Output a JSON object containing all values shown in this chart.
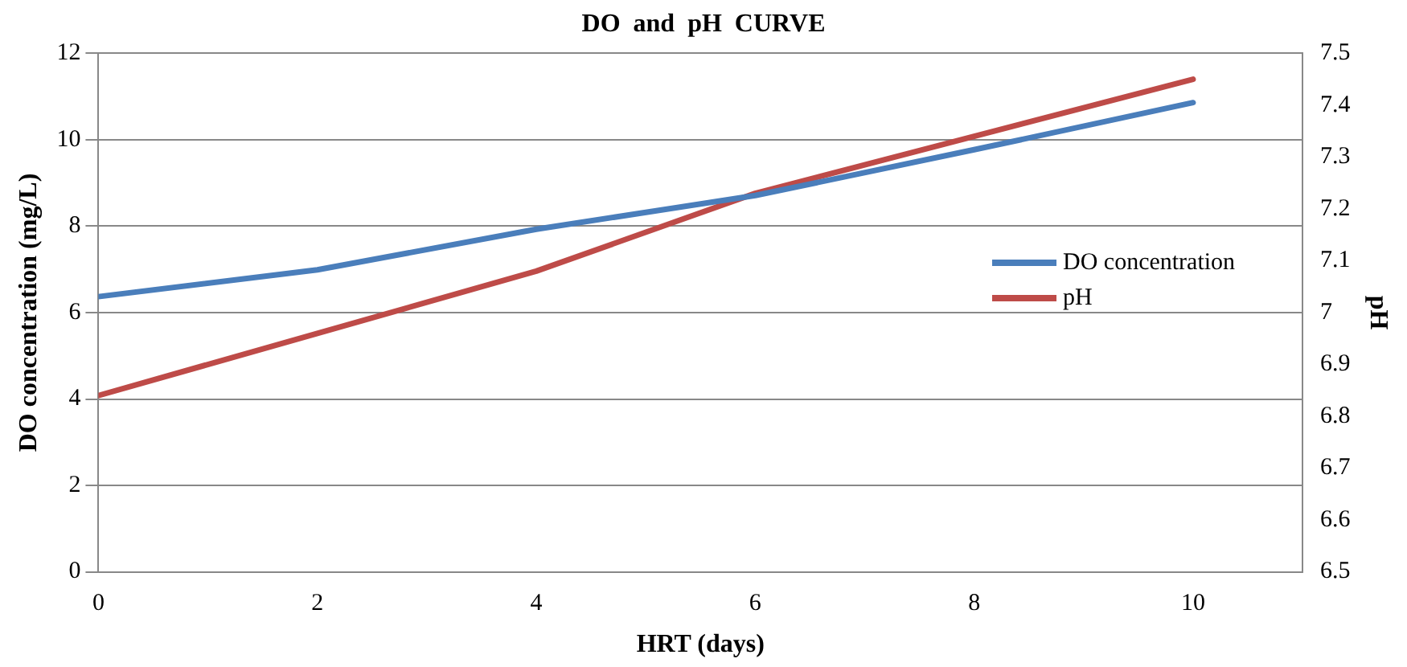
{
  "chart_data": {
    "type": "line",
    "title": "DO  and  pH  CURVE",
    "xlabel": "HRT (days)",
    "ylabel": "DO concentration (mg/L)",
    "y2label": "pH",
    "x": [
      0,
      2,
      4,
      6,
      8,
      10
    ],
    "series": [
      {
        "name": "DO concentration",
        "color": "#4a7ebb",
        "values": [
          6.37,
          6.99,
          7.93,
          8.71,
          9.77,
          10.86
        ]
      },
      {
        "name": "pH",
        "color": "#be4b48",
        "axis": "y2",
        "values": [
          6.84,
          6.96,
          7.08,
          7.23,
          7.34,
          7.45
        ]
      }
    ],
    "xlim": [
      0,
      11
    ],
    "xticks": [
      0,
      2,
      4,
      6,
      8,
      10
    ],
    "ylim": [
      0,
      12
    ],
    "yticks": [
      0,
      2,
      4,
      6,
      8,
      10,
      12
    ],
    "y2lim": [
      6.5,
      7.5
    ],
    "y2ticks": [
      6.5,
      6.6,
      6.7,
      6.8,
      6.9,
      7,
      7.1,
      7.2,
      7.3,
      7.4,
      7.5
    ],
    "grid": "y",
    "legend": "right",
    "marker": "none",
    "line_style": "solid"
  }
}
